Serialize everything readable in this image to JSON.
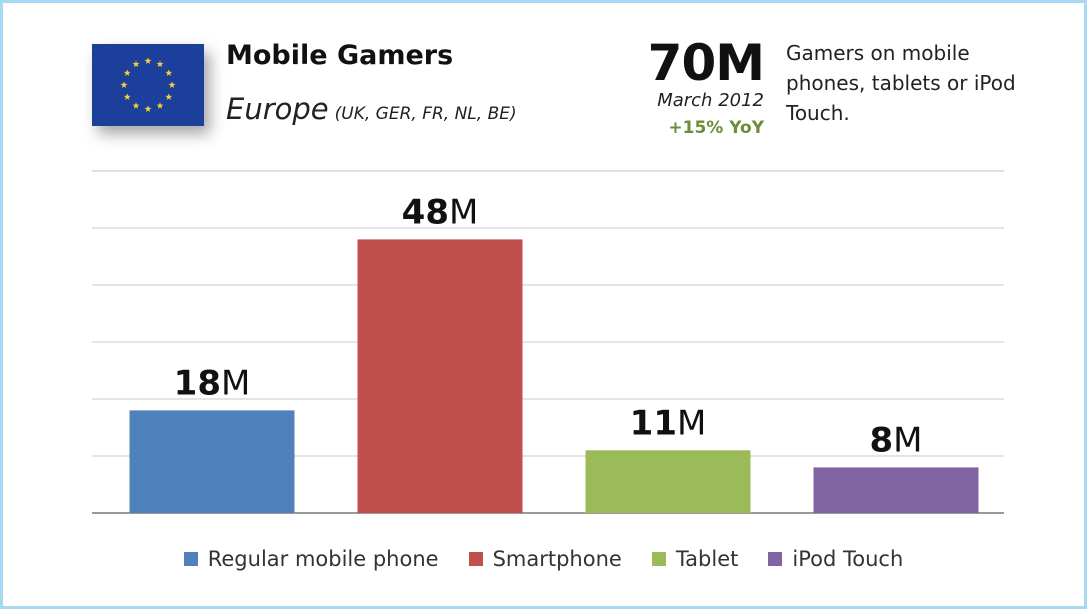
{
  "header": {
    "title": "Mobile Gamers",
    "region": "Europe",
    "region_note": "(UK, GER, FR, NL, BE)",
    "total": "70M",
    "date": "March 2012",
    "growth": "+15% YoY",
    "description": "Gamers on mobile phones, tablets or iPod Touch."
  },
  "colors": {
    "frame": "#a9d9f2",
    "flag_blue": "#1c3f9c",
    "flag_star": "#f4d233",
    "growth": "#6a8e3a"
  },
  "chart_data": {
    "type": "bar",
    "categories": [
      "Regular mobile phone",
      "Smartphone",
      "Tablet",
      "iPod Touch"
    ],
    "values": [
      18,
      48,
      11,
      8
    ],
    "data_labels": [
      {
        "number": "18",
        "unit": "M"
      },
      {
        "number": "48",
        "unit": "M"
      },
      {
        "number": "11",
        "unit": "M"
      },
      {
        "number": "8",
        "unit": "M"
      }
    ],
    "colors": [
      "#4f81bd",
      "#c0504d",
      "#9bbb59",
      "#8064a2"
    ],
    "ylim": [
      0,
      60
    ],
    "grid": true,
    "legend_position": "bottom",
    "title": "",
    "xlabel": "",
    "ylabel": ""
  }
}
